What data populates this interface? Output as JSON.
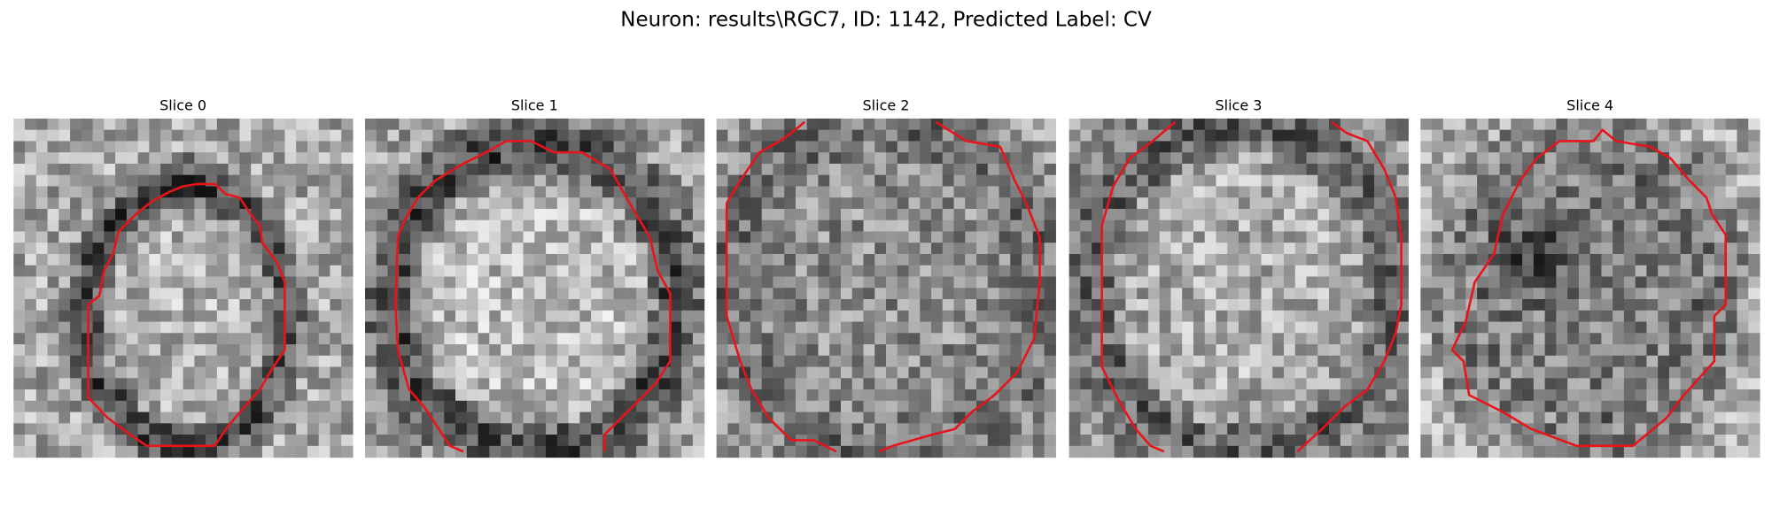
{
  "title": "Neuron: results\\RGC7, ID: 1142, Predicted Label: CV",
  "panels": [
    {
      "title": "Slice 0"
    },
    {
      "title": "Slice 1"
    },
    {
      "title": "Slice 2"
    },
    {
      "title": "Slice 3"
    },
    {
      "title": "Slice 4"
    }
  ]
}
